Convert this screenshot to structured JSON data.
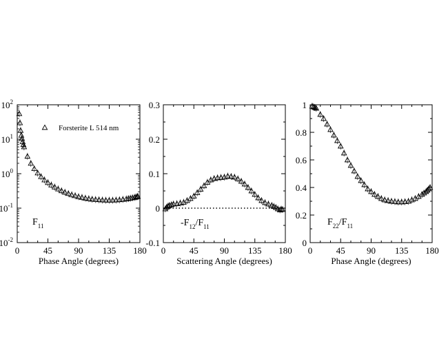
{
  "chart_data": [
    {
      "type": "scatter",
      "title": "",
      "xlabel": "Phase Angle (degrees)",
      "ylabel": "",
      "panel_label": {
        "main": "F",
        "sub": "11"
      },
      "xlim": [
        0,
        180
      ],
      "ylim": [
        0.01,
        100
      ],
      "yscale": "log",
      "xticks": [
        0,
        45,
        90,
        135,
        180
      ],
      "yticks": [
        {
          "value": 0.01,
          "base": "10",
          "exp": "-2"
        },
        {
          "value": 0.1,
          "base": "10",
          "exp": "-1"
        },
        {
          "value": 1,
          "base": "10",
          "exp": "0"
        },
        {
          "value": 10,
          "base": "10",
          "exp": "1"
        },
        {
          "value": 100,
          "base": "10",
          "exp": "2"
        }
      ],
      "legend": {
        "label": "Forsterite L 514 nm",
        "position": "top-left"
      },
      "grid": false,
      "series": [
        {
          "name": "Forsterite L 514 nm",
          "marker": "triangle",
          "points": [
            [
              3,
              55
            ],
            [
              4,
              30
            ],
            [
              5,
              18
            ],
            [
              6,
              13
            ],
            [
              7,
              10.5
            ],
            [
              8,
              8.5
            ],
            [
              9,
              7
            ],
            [
              10,
              6
            ],
            [
              15,
              3.2
            ],
            [
              20,
              2.0
            ],
            [
              25,
              1.4
            ],
            [
              30,
              1.05
            ],
            [
              35,
              0.82
            ],
            [
              40,
              0.66
            ],
            [
              45,
              0.55
            ],
            [
              50,
              0.47
            ],
            [
              55,
              0.41
            ],
            [
              60,
              0.36
            ],
            [
              65,
              0.32
            ],
            [
              70,
              0.29
            ],
            [
              75,
              0.265
            ],
            [
              80,
              0.245
            ],
            [
              85,
              0.23
            ],
            [
              90,
              0.215
            ],
            [
              95,
              0.205
            ],
            [
              100,
              0.195
            ],
            [
              105,
              0.188
            ],
            [
              110,
              0.182
            ],
            [
              115,
              0.178
            ],
            [
              120,
              0.175
            ],
            [
              125,
              0.172
            ],
            [
              130,
              0.17
            ],
            [
              135,
              0.17
            ],
            [
              140,
              0.17
            ],
            [
              145,
              0.172
            ],
            [
              150,
              0.175
            ],
            [
              155,
              0.18
            ],
            [
              160,
              0.185
            ],
            [
              163,
              0.19
            ],
            [
              166,
              0.195
            ],
            [
              169,
              0.2
            ],
            [
              172,
              0.205
            ],
            [
              174,
              0.21
            ],
            [
              176,
              0.215
            ],
            [
              177,
              0.22
            ]
          ]
        }
      ]
    },
    {
      "type": "scatter",
      "title": "",
      "xlabel": "Scattering Angle (degrees)",
      "ylabel": "",
      "panel_label": {
        "prefix": "-F",
        "sub1": "12",
        "mid": "/F",
        "sub2": "11"
      },
      "xlim": [
        0,
        180
      ],
      "ylim": [
        -0.1,
        0.3
      ],
      "yscale": "linear",
      "xticks": [
        0,
        45,
        90,
        135,
        180
      ],
      "yticks": [
        "-0.1",
        "0",
        "0.1",
        "0.2",
        "0.3"
      ],
      "reference_line": {
        "y": 0,
        "style": "dotted"
      },
      "grid": false,
      "series": [
        {
          "name": "",
          "marker": "triangle",
          "points": [
            [
              3,
              -0.002
            ],
            [
              5,
              0.003
            ],
            [
              7,
              0.006
            ],
            [
              9,
              0.008
            ],
            [
              12,
              0.01
            ],
            [
              15,
              0.012
            ],
            [
              20,
              0.013
            ],
            [
              25,
              0.015
            ],
            [
              30,
              0.017
            ],
            [
              35,
              0.022
            ],
            [
              40,
              0.028
            ],
            [
              45,
              0.035
            ],
            [
              50,
              0.045
            ],
            [
              55,
              0.055
            ],
            [
              60,
              0.065
            ],
            [
              65,
              0.075
            ],
            [
              70,
              0.082
            ],
            [
              75,
              0.086
            ],
            [
              80,
              0.088
            ],
            [
              85,
              0.089
            ],
            [
              90,
              0.09
            ],
            [
              95,
              0.093
            ],
            [
              100,
              0.092
            ],
            [
              105,
              0.09
            ],
            [
              110,
              0.085
            ],
            [
              115,
              0.078
            ],
            [
              120,
              0.07
            ],
            [
              125,
              0.06
            ],
            [
              130,
              0.05
            ],
            [
              135,
              0.04
            ],
            [
              140,
              0.03
            ],
            [
              145,
              0.022
            ],
            [
              150,
              0.016
            ],
            [
              155,
              0.012
            ],
            [
              160,
              0.008
            ],
            [
              163,
              0.005
            ],
            [
              166,
              0.002
            ],
            [
              169,
              -0.002
            ],
            [
              172,
              -0.005
            ],
            [
              174,
              -0.003
            ],
            [
              176,
              -0.004
            ]
          ]
        }
      ]
    },
    {
      "type": "scatter",
      "title": "",
      "xlabel": "Phase Angle (degrees)",
      "ylabel": "",
      "panel_label": {
        "prefix": "F",
        "sub1": "22",
        "mid": "/F",
        "sub2": "11"
      },
      "xlim": [
        0,
        180
      ],
      "ylim": [
        0,
        1
      ],
      "yscale": "linear",
      "xticks": [
        0,
        45,
        90,
        135,
        180
      ],
      "yticks": [
        "0",
        "0.2",
        "0.4",
        "0.6",
        "0.8",
        "1"
      ],
      "grid": false,
      "series": [
        {
          "name": "",
          "marker": "triangle",
          "points": [
            [
              3,
              0.99
            ],
            [
              5,
              0.985
            ],
            [
              7,
              0.98
            ],
            [
              9,
              0.975
            ],
            [
              15,
              0.93
            ],
            [
              20,
              0.9
            ],
            [
              25,
              0.86
            ],
            [
              30,
              0.82
            ],
            [
              35,
              0.78
            ],
            [
              40,
              0.74
            ],
            [
              45,
              0.7
            ],
            [
              50,
              0.65
            ],
            [
              55,
              0.6
            ],
            [
              60,
              0.56
            ],
            [
              65,
              0.52
            ],
            [
              70,
              0.48
            ],
            [
              75,
              0.45
            ],
            [
              80,
              0.42
            ],
            [
              85,
              0.39
            ],
            [
              90,
              0.37
            ],
            [
              95,
              0.35
            ],
            [
              100,
              0.335
            ],
            [
              105,
              0.32
            ],
            [
              110,
              0.31
            ],
            [
              115,
              0.305
            ],
            [
              120,
              0.3
            ],
            [
              125,
              0.298
            ],
            [
              130,
              0.295
            ],
            [
              135,
              0.295
            ],
            [
              140,
              0.297
            ],
            [
              145,
              0.3
            ],
            [
              150,
              0.31
            ],
            [
              155,
              0.32
            ],
            [
              160,
              0.335
            ],
            [
              165,
              0.35
            ],
            [
              168,
              0.36
            ],
            [
              171,
              0.37
            ],
            [
              173,
              0.38
            ],
            [
              175,
              0.39
            ],
            [
              177,
              0.4
            ]
          ]
        }
      ]
    }
  ]
}
